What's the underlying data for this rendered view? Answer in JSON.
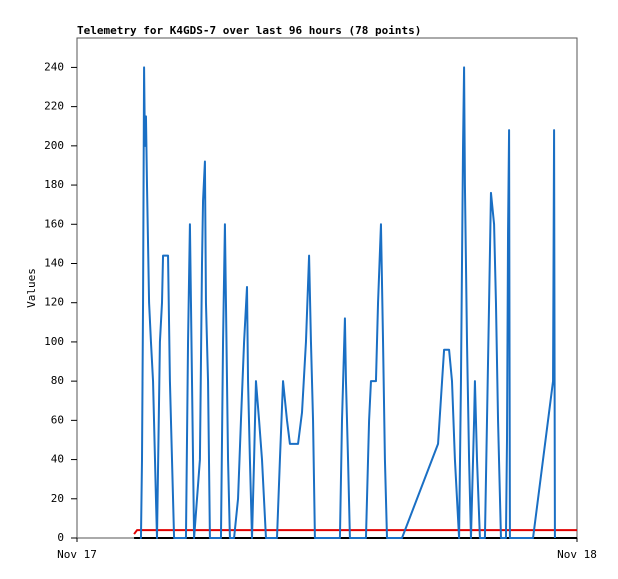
{
  "chart_data": {
    "type": "line",
    "title": "Telemetry for K4GDS-7 over last 96 hours (78 points)",
    "ylabel": "Values",
    "xlim": [
      0,
      24
    ],
    "xticks": [
      {
        "value": 0,
        "label": "Nov 17"
      },
      {
        "value": 24,
        "label": "Nov 18"
      }
    ],
    "ylim": [
      0,
      255
    ],
    "yticks": [
      0,
      20,
      40,
      60,
      80,
      100,
      120,
      140,
      160,
      180,
      200,
      220,
      240
    ],
    "grid": false,
    "series": [
      {
        "color": "#000000",
        "x": [
          2.74,
          24
        ],
        "values": [
          0,
          0
        ]
      },
      {
        "color": "#e00000",
        "x": [
          2.74,
          2.88,
          24
        ],
        "values": [
          2,
          4,
          4
        ]
      },
      {
        "color": "#1a6fc4",
        "x": [
          3.02,
          3.07,
          3.12,
          3.17,
          3.22,
          3.26,
          3.31,
          3.36,
          3.46,
          3.55,
          3.65,
          3.79,
          3.84,
          3.98,
          4.08,
          4.13,
          4.37,
          4.46,
          4.56,
          4.66,
          5.23,
          5.33,
          5.42,
          5.47,
          5.57,
          5.62,
          5.9,
          6.0,
          6.05,
          6.14,
          6.19,
          6.29,
          6.38,
          6.91,
          7.01,
          7.1,
          7.15,
          7.25,
          7.34,
          7.54,
          7.73,
          7.87,
          8.02,
          8.16,
          8.21,
          8.3,
          8.4,
          8.5,
          8.59,
          8.74,
          8.88,
          9.07,
          9.6,
          9.74,
          9.89,
          10.08,
          10.22,
          10.61,
          10.8,
          10.99,
          11.14,
          11.23,
          11.33,
          11.42,
          12.62,
          12.72,
          12.86,
          12.91,
          13.01,
          13.1,
          13.87,
          14.02,
          14.11,
          14.35,
          14.45,
          14.59,
          14.69,
          14.78,
          14.88,
          15.6,
          17.33,
          17.62,
          17.86,
          18.0,
          18.14,
          18.34,
          18.43,
          18.53,
          18.58,
          18.62,
          18.72,
          18.82,
          18.91,
          19.06,
          19.1,
          19.2,
          19.34,
          19.58,
          19.68,
          19.78,
          19.87,
          20.02,
          20.11,
          20.21,
          20.35,
          20.59,
          20.64,
          20.69,
          20.74,
          20.78,
          21.89,
          22.85,
          22.9,
          22.94
        ],
        "values": [
          0,
          0,
          40,
          120,
          240,
          200,
          215,
          180,
          120,
          100,
          80,
          20,
          0,
          100,
          120,
          144,
          144,
          80,
          40,
          0,
          0,
          100,
          160,
          120,
          40,
          0,
          40,
          140,
          172,
          192,
          120,
          80,
          0,
          0,
          100,
          160,
          120,
          40,
          0,
          0,
          20,
          60,
          100,
          128,
          80,
          40,
          0,
          40,
          80,
          60,
          40,
          0,
          0,
          40,
          80,
          60,
          48,
          48,
          64,
          100,
          144,
          100,
          60,
          0,
          0,
          60,
          112,
          80,
          40,
          0,
          0,
          60,
          80,
          80,
          120,
          160,
          100,
          40,
          0,
          0,
          48,
          96,
          96,
          80,
          40,
          0,
          80,
          200,
          240,
          180,
          100,
          40,
          0,
          60,
          80,
          40,
          0,
          0,
          60,
          120,
          176,
          160,
          120,
          60,
          0,
          0,
          50,
          156,
          208,
          0,
          0,
          80,
          208,
          0
        ]
      }
    ]
  }
}
